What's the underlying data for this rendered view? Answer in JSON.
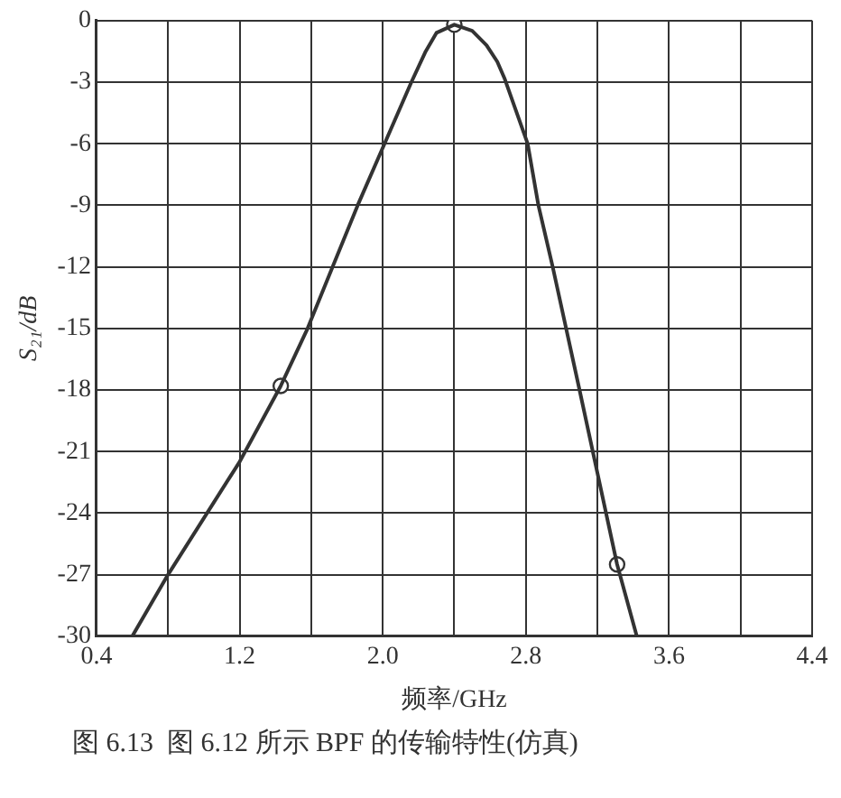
{
  "chart_data": {
    "type": "line",
    "xlabel": "频率/GHz",
    "ylabel": "S₂₁/dB",
    "xlim": [
      0.4,
      4.4
    ],
    "ylim": [
      -30,
      0
    ],
    "xticks": [
      0.4,
      {
        "value": 0.8,
        "label": null
      },
      1.2,
      {
        "value": 1.6,
        "label": null
      },
      "2.0",
      {
        "value": 2.4,
        "label": null
      },
      2.8,
      {
        "value": 3.2,
        "label": null
      },
      3.6,
      {
        "value": 4.0,
        "label": null
      },
      4.4
    ],
    "yticks": [
      -30,
      -27,
      -24,
      -21,
      -18,
      -15,
      -12,
      -9,
      -6,
      -3,
      0
    ],
    "grid": true,
    "legend": false,
    "series": [
      {
        "color": "#333333",
        "marker": "none",
        "x": [
          0.6,
          0.8,
          1.2,
          1.43,
          1.58,
          1.72,
          1.86,
          2.01,
          2.16,
          2.24,
          2.3,
          2.4,
          2.5,
          2.58,
          2.64,
          2.68,
          2.81,
          2.87,
          2.95,
          3.1,
          3.31,
          3.42
        ],
        "values": [
          -30,
          -27,
          -21.5,
          -17.8,
          -15,
          -12,
          -9,
          -6,
          -3,
          -1.5,
          -0.6,
          -0.2,
          -0.5,
          -1.2,
          -2,
          -2.8,
          -6,
          -9,
          -12,
          -18,
          -26.5,
          -30
        ]
      },
      {
        "type": "scatter",
        "color": "#333333",
        "marker": "circle",
        "x": [
          1.43,
          2.4,
          3.31
        ],
        "values": [
          -17.8,
          -0.2,
          -26.5
        ]
      }
    ],
    "annotations": [
      "图 6.13  图 6.12 所示 BPF 的传输特性(仿真)"
    ]
  }
}
